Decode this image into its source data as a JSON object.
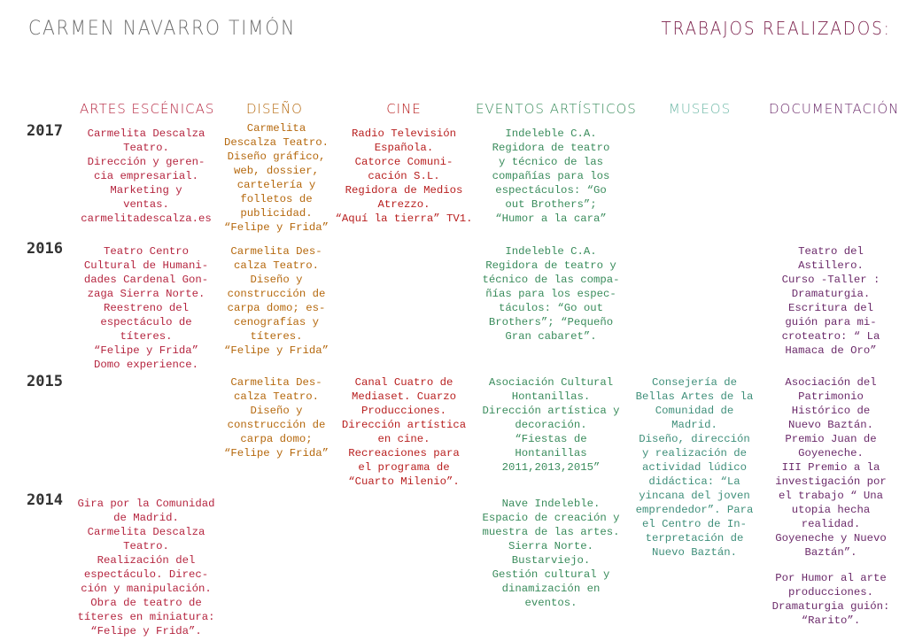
{
  "header": {
    "name": "CARMEN NAVARRO TIMÓN",
    "trabajos": "TRABAJOS REALIZADOS:"
  },
  "columns": {
    "artes": "ARTES ESCÉNICAS",
    "diseno": "DISEÑO",
    "cine": "CINE",
    "eventos": "EVENTOS ARTÍSTICOS",
    "museos": "MUSEOS",
    "documentacion": "DOCUMENTACIÓN"
  },
  "years": {
    "y2017": "2017",
    "y2016": "2016",
    "y2015": "2015",
    "y2014": "2014"
  },
  "cells": {
    "artes_2017": [
      "Carmelita Descalza",
      "Teatro.",
      "Dirección y geren-",
      "cia empresarial.",
      "Marketing y",
      "ventas.",
      "carmelitadescalza.es"
    ],
    "diseno_2017": [
      "Carmelita",
      "Descalza Teatro.",
      "Diseño gráfico,",
      "web, dossier,",
      "cartelería y",
      "folletos de",
      "publicidad.",
      "“Felipe y Frida”"
    ],
    "cine_2017": [
      "Radio Televisión",
      "Española.",
      "Catorce Comuni-",
      "cación S.L.",
      "Regidora de Medios",
      "Atrezzo.",
      "“Aquí la tierra” TV1."
    ],
    "eventos_2017": [
      "Indeleble C.A.",
      "Regidora de teatro",
      "y técnico de las",
      "compañías para los",
      "espectáculos: “Go",
      "out Brothers”;",
      "“Humor a la cara”"
    ],
    "artes_2016": [
      "Teatro Centro",
      "Cultural de Humani-",
      "dades Cardenal Gon-",
      "zaga  Sierra Norte.",
      "Reestreno del",
      "espectáculo de",
      "títeres.",
      "“Felipe y Frida”",
      "Domo experience."
    ],
    "diseno_2016": [
      "Carmelita Des-",
      "calza Teatro.",
      "Diseño y",
      "construcción de",
      "carpa domo; es-",
      "cenografías y",
      "títeres.",
      "“Felipe y Frida”"
    ],
    "eventos_2016": [
      "Indeleble C.A.",
      "Regidora de teatro  y",
      "técnico de las compa-",
      "ñías para los espec-",
      "táculos: “Go out",
      "Brothers”; “Pequeño",
      "Gran cabaret”."
    ],
    "doc_2016": [
      "Teatro del",
      "Astillero.",
      "Curso -Taller :",
      "Dramaturgia.",
      "Escritura del",
      "guión para mi-",
      "croteatro: “ La",
      "Hamaca de Oro”"
    ],
    "diseno_2015": [
      "Carmelita Des-",
      "calza Teatro.",
      "Diseño y",
      "construcción de",
      "carpa domo;",
      "“Felipe y Frida”"
    ],
    "cine_2015": [
      "Canal Cuatro de",
      "Mediaset. Cuarzo",
      "Producciones.",
      "Dirección artística",
      "en cine.",
      "Recreaciones para",
      "el programa de",
      "“Cuarto Milenio”."
    ],
    "eventos_2015": [
      "Asociación Cultural",
      "Hontanillas.",
      "Dirección artística y",
      "decoración.",
      "“Fiestas de",
      "Hontanillas",
      "2011,2013,2015”"
    ],
    "museos_2015": [
      "Consejería de",
      "Bellas Artes de la",
      "Comunidad de",
      "Madrid.",
      "Diseño, dirección",
      "y realización de",
      "actividad lúdico",
      "didáctica: “La",
      "yincana del joven",
      "emprendedor”. Para",
      "el Centro de In-",
      "terpretación de",
      "Nuevo Baztán."
    ],
    "doc_2015": [
      "Asociación del",
      "Patrimonio",
      "Histórico de",
      "Nuevo Baztán.",
      "Premio Juan de",
      "Goyeneche.",
      "III Premio a la",
      "investigación por",
      "el trabajo “ Una",
      "utopia hecha",
      "realidad.",
      "Goyeneche y Nuevo",
      "Baztán”."
    ],
    "artes_2014": [
      "Gira por la Comunidad",
      "de Madrid.",
      "Carmelita Descalza",
      "Teatro.",
      "Realización del",
      "espectáculo. Direc-",
      "ción y manipulación.",
      "Obra de teatro de",
      "títeres en miniatura:",
      "“Felipe y Frida”."
    ],
    "eventos_2014": [
      "Nave Indeleble.",
      "Espacio de creación y",
      "muestra de las artes.",
      "Sierra Norte.",
      "Bustarviejo.",
      "Gestión cultural y",
      "dinamización en",
      "eventos."
    ],
    "doc_2014": [
      "Por Humor al arte",
      "producciones.",
      "Dramaturgia guión:",
      "“Rarito”."
    ]
  },
  "colors": {
    "artes": "#b5253f",
    "diseno": "#b5680d",
    "cine": "#b81f1f",
    "eventos": "#3a8c5c",
    "museos": "#3f8f7a",
    "documentacion": "#6b2a6a"
  }
}
